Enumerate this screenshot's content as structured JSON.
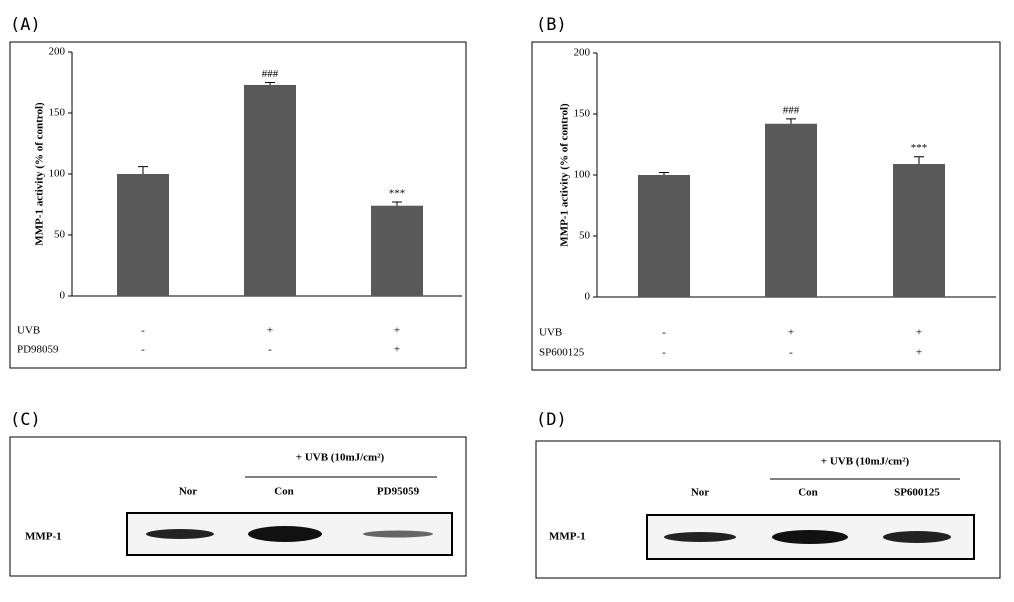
{
  "chart_data": [
    {
      "type": "bar",
      "panel": "(A)",
      "ylabel": "MMP-1 activity (% of control)",
      "values": [
        100,
        173,
        74
      ],
      "errors": [
        6,
        2,
        3
      ],
      "value_annotations": [
        null,
        "###",
        "***"
      ],
      "color": "#595959",
      "ylim": [
        0,
        200
      ],
      "yticks": [
        0,
        50,
        100,
        150,
        200
      ],
      "treatments": [
        {
          "name": "UVB",
          "signs": [
            "-",
            "+",
            "+"
          ]
        },
        {
          "name": "PD98059",
          "signs": [
            "-",
            "-",
            "+"
          ]
        }
      ]
    },
    {
      "type": "bar",
      "panel": "(B)",
      "ylabel": "MMP-1 activity (% of control)",
      "values": [
        100,
        142,
        109
      ],
      "errors": [
        2,
        4,
        6
      ],
      "value_annotations": [
        null,
        "###",
        "***"
      ],
      "color": "#595959",
      "ylim": [
        0,
        200
      ],
      "yticks": [
        0,
        50,
        100,
        150,
        200
      ],
      "treatments": [
        {
          "name": "UVB",
          "signs": [
            "-",
            "+",
            "+"
          ]
        },
        {
          "name": "SP600125",
          "signs": [
            "-",
            "-",
            "+"
          ]
        }
      ]
    }
  ],
  "blots": [
    {
      "panel": "(C)",
      "header": "+ UVB (10mJ/cm²)",
      "lanes": [
        "Nor",
        "Con",
        "PD95059"
      ],
      "row_label": "MMP-1"
    },
    {
      "panel": "(D)",
      "header": "+ UVB (10mJ/cm²)",
      "lanes": [
        "Nor",
        "Con",
        "SP600125"
      ],
      "row_label": "MMP-1"
    }
  ]
}
